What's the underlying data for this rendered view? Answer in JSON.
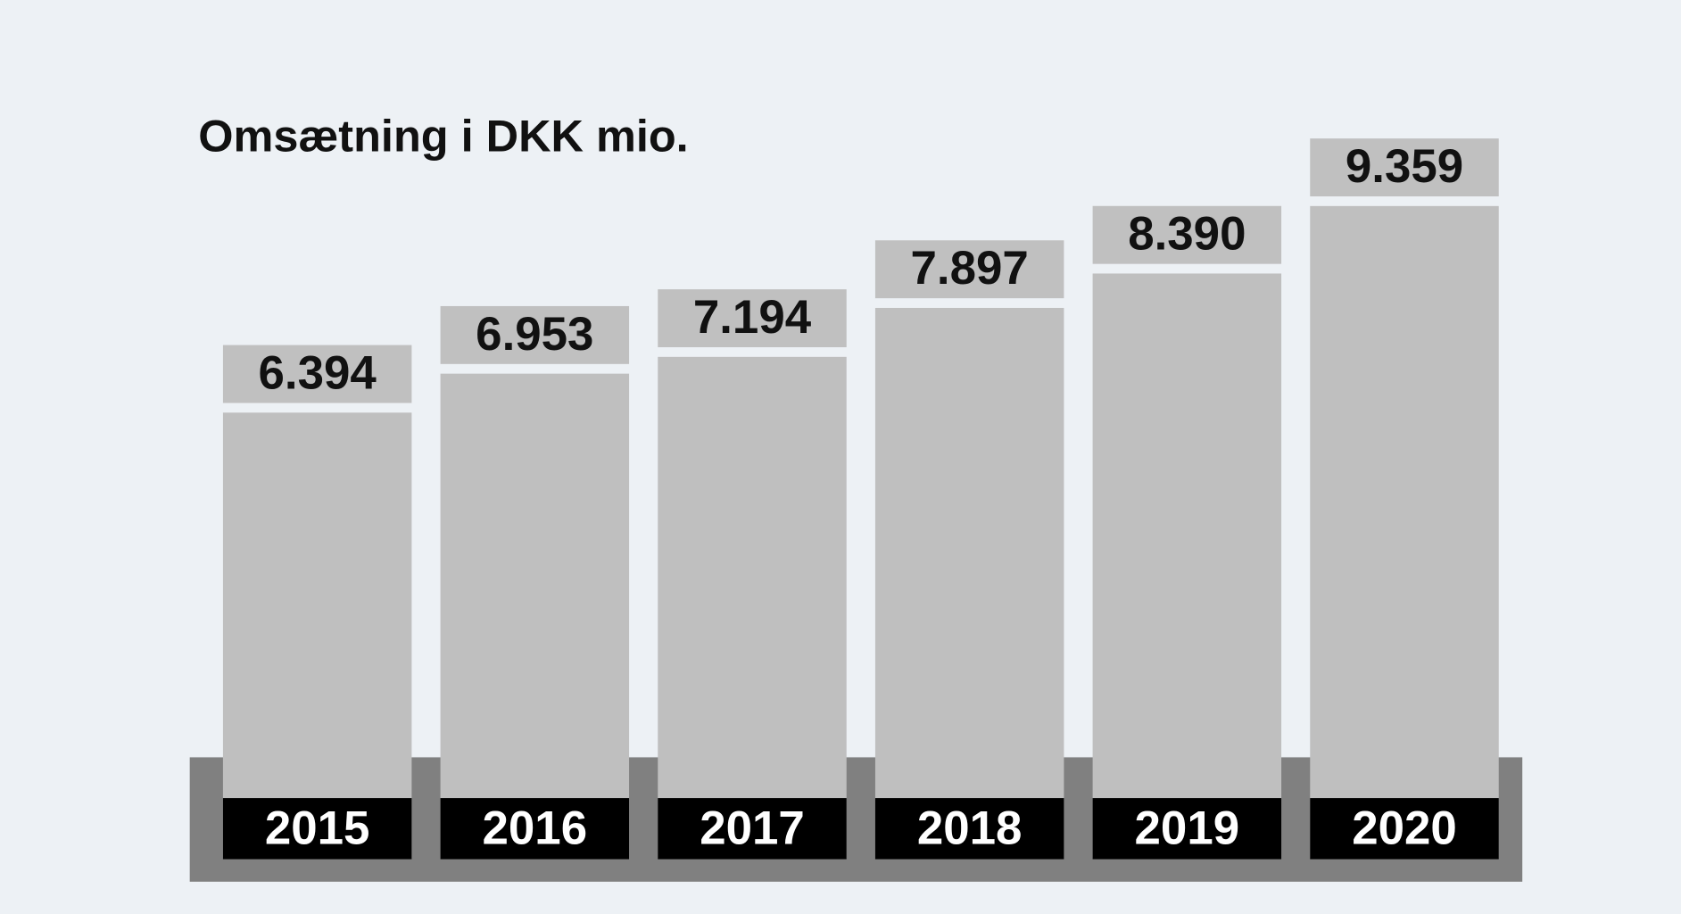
{
  "chart_data": {
    "type": "bar",
    "title": "Omsætning i DKK mio.",
    "categories": [
      "2015",
      "2016",
      "2017",
      "2018",
      "2019",
      "2020"
    ],
    "values": [
      6394,
      6953,
      7194,
      7897,
      8390,
      9359
    ],
    "value_labels": [
      "6.394",
      "6.953",
      "7.194",
      "7.897",
      "8.390",
      "9.359"
    ],
    "color": "#bfbfbf"
  }
}
